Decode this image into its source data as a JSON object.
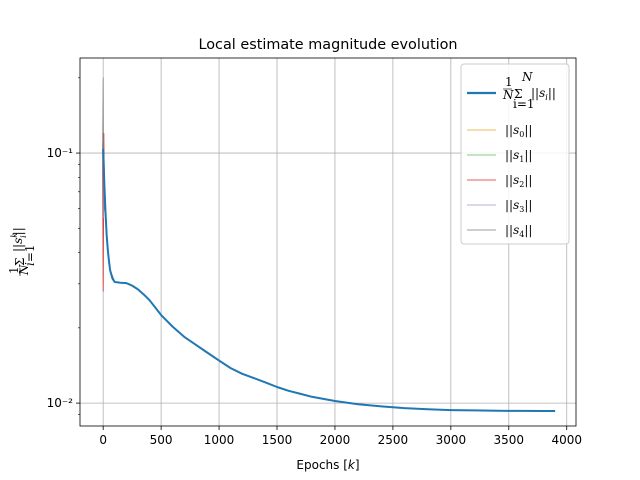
{
  "chart_data": {
    "type": "line",
    "title": "Local estimate magnitude evolution",
    "xlabel": "Epochs [k]",
    "ylabel": "1/N Σ_{i=1}^{N} ||s_i^k||",
    "xlim": [
      -200,
      4080
    ],
    "ylim": [
      0.0081,
      0.24
    ],
    "yscale": "log",
    "grid": true,
    "legend_position": "top-right",
    "x_ticks": [
      0,
      500,
      1000,
      1500,
      2000,
      2500,
      3000,
      3500,
      4000
    ],
    "x_tick_labels": [
      "0",
      "500",
      "1000",
      "1500",
      "2000",
      "2500",
      "3000",
      "3500",
      "4000"
    ],
    "y_ticks": [
      0.1,
      0.01
    ],
    "y_tick_labels": [
      "10⁻¹",
      "10⁻²"
    ],
    "series": [
      {
        "name": "1/N Σ_{i=1}^{N} ||s_i||",
        "color": "#1f77b4",
        "width": "thick",
        "x": [
          0,
          10,
          20,
          30,
          40,
          50,
          60,
          80,
          100,
          150,
          200,
          250,
          300,
          350,
          400,
          500,
          600,
          700,
          800,
          900,
          1000,
          1100,
          1200,
          1300,
          1400,
          1500,
          1600,
          1700,
          1800,
          1900,
          2000,
          2200,
          2400,
          2600,
          2800,
          3000,
          3200,
          3400,
          3600,
          3800,
          3900
        ],
        "y": [
          0.104,
          0.075,
          0.058,
          0.047,
          0.041,
          0.037,
          0.034,
          0.0315,
          0.0305,
          0.0303,
          0.0302,
          0.0295,
          0.0285,
          0.0272,
          0.0258,
          0.0225,
          0.0202,
          0.0184,
          0.0171,
          0.0159,
          0.0148,
          0.0138,
          0.0131,
          0.0126,
          0.0121,
          0.0116,
          0.0112,
          0.0109,
          0.0106,
          0.0104,
          0.0102,
          0.0099,
          0.0097,
          0.00955,
          0.00945,
          0.00938,
          0.00935,
          0.00932,
          0.00931,
          0.0093,
          0.0093
        ]
      },
      {
        "name": "||s_0||",
        "color": "#e8a42a",
        "width": "thin",
        "x": [
          -5,
          0,
          4,
          8,
          12,
          20,
          30,
          40,
          60,
          100
        ],
        "y": [
          0.105,
          0.11,
          0.06,
          0.09,
          0.07,
          0.056,
          0.046,
          0.041,
          0.034,
          0.0305
        ]
      },
      {
        "name": "||s_1||",
        "color": "#5cb85c",
        "width": "thin",
        "x": [
          -5,
          0,
          4,
          8,
          12,
          20,
          30,
          40,
          60,
          100
        ],
        "y": [
          0.11,
          0.09,
          0.07,
          0.1,
          0.065,
          0.058,
          0.047,
          0.041,
          0.034,
          0.0305
        ]
      },
      {
        "name": "||s_2||",
        "color": "#d62728",
        "width": "thin",
        "x": [
          -5,
          0,
          3,
          6,
          10,
          15,
          20,
          30,
          40,
          60,
          100
        ],
        "y": [
          0.1,
          0.028,
          0.06,
          0.12,
          0.07,
          0.065,
          0.057,
          0.047,
          0.041,
          0.034,
          0.0305
        ]
      },
      {
        "name": "||s_3||",
        "color": "#9a9ad0",
        "width": "thin",
        "x": [
          -5,
          0,
          4,
          8,
          12,
          20,
          30,
          40,
          60,
          100
        ],
        "y": [
          0.098,
          0.115,
          0.055,
          0.085,
          0.07,
          0.058,
          0.047,
          0.041,
          0.034,
          0.0305
        ]
      },
      {
        "name": "||s_4||",
        "color": "#7f7f7f",
        "width": "thin",
        "x": [
          -5,
          0,
          3,
          6,
          10,
          20,
          30,
          40,
          60,
          100
        ],
        "y": [
          0.1,
          0.2,
          0.07,
          0.065,
          0.06,
          0.056,
          0.047,
          0.041,
          0.034,
          0.0305
        ]
      }
    ]
  }
}
